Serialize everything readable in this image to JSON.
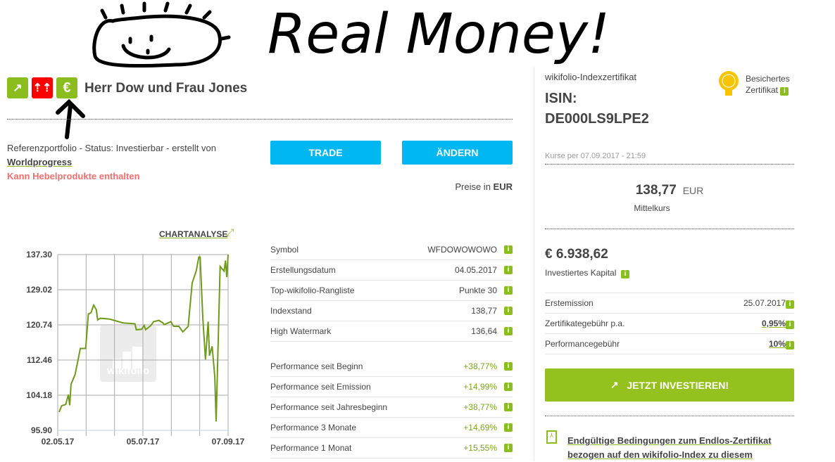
{
  "annotation": {
    "text": "Real Money!"
  },
  "header": {
    "title": "Herr Dow und Frau Jones",
    "icons": [
      "chart-up-icon",
      "leverage-arrows-icon",
      "euro-icon"
    ],
    "colors": {
      "green": "#8cbd1f",
      "red": "#ff0000",
      "blue": "#00b7f1"
    }
  },
  "meta": {
    "status_line": "Referenzportfolio - Status: Investierbar - erstellt von",
    "author": "Worldprogress",
    "warning": "Kann Hebelprodukte enthalten"
  },
  "buttons": {
    "trade": "TRADE",
    "change": "ÄNDERN"
  },
  "prices_in": {
    "label": "Preise in",
    "currency": "EUR"
  },
  "chart_link": "CHARTANALYSE",
  "chart_data": {
    "type": "line",
    "ylim": [
      95.9,
      137.3
    ],
    "yticks": [
      "137.30",
      "129.02",
      "120.74",
      "112.46",
      "104.18",
      "95.90"
    ],
    "xticks": [
      "02.05.17",
      "05.07.17",
      "07.09.17"
    ],
    "watermark": "wikifolio",
    "grid": true,
    "x": [
      "03.05.17",
      "05.05.17",
      "08.05.17",
      "10.05.17",
      "11.05.17",
      "12.05.17",
      "15.05.17",
      "19.05.17",
      "23.05.17",
      "25.05.17",
      "27.05.17",
      "29.05.17",
      "31.05.17",
      "01.06.17",
      "03.06.17",
      "10.06.17",
      "20.06.17",
      "29.06.17",
      "30.06.17",
      "04.07.17",
      "06.07.17",
      "07.07.17",
      "11.07.17",
      "13.07.17",
      "17.07.17",
      "20.07.17",
      "21.07.17",
      "26.07.17",
      "28.07.17",
      "01.08.17",
      "04.08.17",
      "08.08.17",
      "11.08.17",
      "14.08.17",
      "16.08.17",
      "17.08.17",
      "19.08.17",
      "21.08.17",
      "23.08.17",
      "24.08.17",
      "26.08.17",
      "28.08.17",
      "29.08.17",
      "01.09.17",
      "04.09.17",
      "05.09.17",
      "06.09.17",
      "07.09.17"
    ],
    "y": [
      100.2,
      101.7,
      102.0,
      104.3,
      101.8,
      106.8,
      109.0,
      115.2,
      115.2,
      123.3,
      123.6,
      125.4,
      124.3,
      121.9,
      122.3,
      122.1,
      121.2,
      121.0,
      119.6,
      119.7,
      120.6,
      119.6,
      120.6,
      121.5,
      121.8,
      121.2,
      120.8,
      121.5,
      120.4,
      120.4,
      119.1,
      120.4,
      130.6,
      133.4,
      136.7,
      136.7,
      122.3,
      112.6,
      121.5,
      113.5,
      115.7,
      108.5,
      98.0,
      134.5,
      133.4,
      135.9,
      132.0,
      137.3
    ],
    "line_color": "#6f9a1c"
  },
  "details": [
    {
      "label": "Symbol",
      "value": "WFDOWOWOWO"
    },
    {
      "label": "Erstellungsdatum",
      "value": "04.05.2017"
    },
    {
      "label": "Top-wikifolio-Rangliste",
      "value": "Punkte 30"
    },
    {
      "label": "Indexstand",
      "value": "138,77"
    },
    {
      "label": "High Watermark",
      "value": "136,64"
    }
  ],
  "performance": [
    {
      "label": "Performance seit Beginn",
      "value": "+38,77%"
    },
    {
      "label": "Performance seit Emission",
      "value": "+14,99%"
    },
    {
      "label": "Performance seit Jahresbeginn",
      "value": "+38,77%"
    },
    {
      "label": "Performance 3 Monate",
      "value": "+14,69%"
    },
    {
      "label": "Performance 1 Monat",
      "value": "+15,55%"
    }
  ],
  "info_glyph": "i",
  "certificate": {
    "type": "wikifolio-Indexzertifikat",
    "badge_line1": "Besichertes",
    "badge_line2": "Zertifikat",
    "isin_label": "ISIN:",
    "isin": "DE000LS9LPE2",
    "quote_time": "Kurse per 07.09.2017 - 21:59",
    "price": "138,77",
    "price_currency": "EUR",
    "price_label": "Mittelkurs",
    "capital": "€ 6.938,62",
    "capital_label": "Investiertes Kapital",
    "rows": [
      {
        "label": "Erstemission",
        "value": "25.07.2017"
      },
      {
        "label": "Zertifikategebühr p.a.",
        "value": "0,95%"
      },
      {
        "label": "Performancegebühr",
        "value": "10%"
      }
    ],
    "invest_button": "JETZT INVESTIEREN!",
    "doc_link_1": "Endgültige Bedingungen zum Endlos-Zertifikat",
    "doc_link_2": "bezogen auf den wikifolio-Index zu diesem"
  }
}
